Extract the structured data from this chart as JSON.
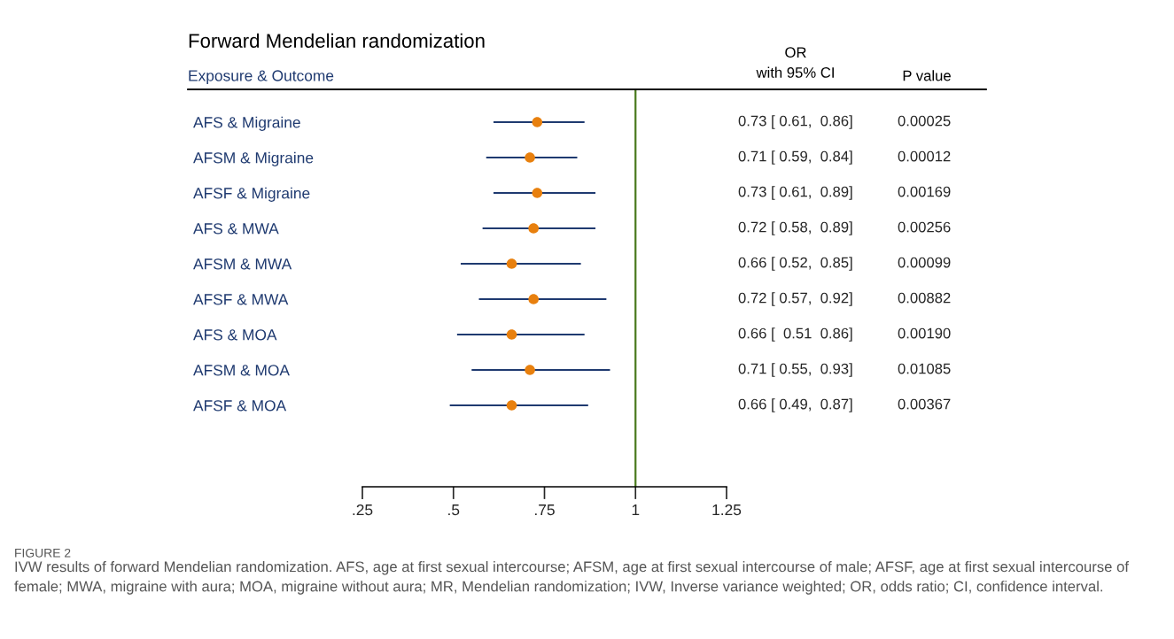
{
  "chart_data": {
    "type": "scatter",
    "title": "Forward Mendelian randomization",
    "ylabel": "Exposure & Outcome",
    "categories": [
      "AFS & Migraine",
      "AFSM & Migraine",
      "AFSF & Migraine",
      "AFS & MWA",
      "AFSM & MWA",
      "AFSF & MWA",
      "AFS & MOA",
      "AFSM & MOA",
      "AFSF & MOA"
    ],
    "series": [
      {
        "color": "#e8800e",
        "values": [
          0.73,
          0.71,
          0.73,
          0.72,
          0.66,
          0.72,
          0.66,
          0.71,
          0.66
        ],
        "errors": [
          [
            0.61,
            0.86
          ],
          [
            0.59,
            0.84
          ],
          [
            0.61,
            0.89
          ],
          [
            0.58,
            0.89
          ],
          [
            0.52,
            0.85
          ],
          [
            0.57,
            0.92
          ],
          [
            0.51,
            0.86
          ],
          [
            0.55,
            0.93
          ],
          [
            0.49,
            0.87
          ]
        ],
        "value_labels": [
          "0.73 [ 0.61,  0.86]",
          "0.71 [ 0.59,  0.84]",
          "0.73 [ 0.61,  0.89]",
          "0.72 [ 0.58,  0.89]",
          "0.66 [ 0.52,  0.85]",
          "0.72 [ 0.57,  0.92]",
          "0.66 [  0.51  0.86]",
          "0.71 [ 0.55,  0.93]",
          "0.66 [ 0.49,  0.87]"
        ]
      }
    ],
    "xlim": [
      0.25,
      1.25
    ],
    "xticks": [
      {
        "value": 0.25,
        "label": ".25"
      },
      {
        "value": 0.5,
        "label": ".5"
      },
      {
        "value": 0.75,
        "label": ".75"
      },
      {
        "value": 1,
        "label": "1"
      },
      {
        "value": 1.25,
        "label": "1.25"
      }
    ],
    "orientation": "horizontal",
    "ref_lines": [
      {
        "axis": "x",
        "value": 1,
        "color": "#4a7a1e"
      }
    ],
    "marker": "circle",
    "grid": false,
    "legend": false,
    "annotations": [
      "OR\nwith 95% CI",
      "P value",
      "FIGURE 2",
      "IVW results of forward Mendelian randomization. AFS, age at first sexual intercourse; AFSM, age at first sexual intercourse of male; AFSF, age at first sexual intercourse of female; MWA, migraine with aura; MOA, migraine without aura; MR, Mendelian randomization; IVW, Inverse variance weighted; OR, odds ratio; CI, confidence interval.",
      "0.00025",
      "0.00012",
      "0.00169",
      "0.00256",
      "0.00099",
      "0.00882",
      "0.00190",
      "0.01085",
      "0.00367"
    ]
  }
}
